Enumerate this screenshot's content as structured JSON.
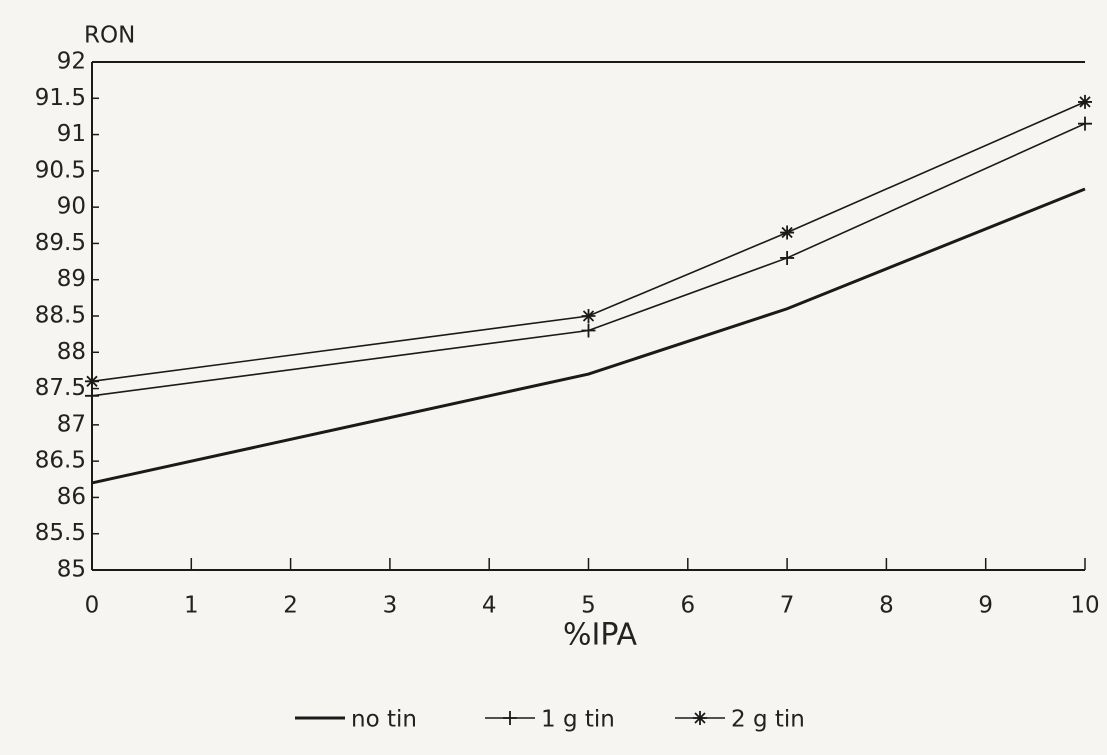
{
  "chart_data": {
    "type": "line",
    "y_label": "RON",
    "x_label": "%IPA",
    "x": [
      0,
      5,
      7,
      10
    ],
    "series": [
      {
        "name": "no tin",
        "color": "#1a1a1a",
        "marker": "none",
        "values": [
          86.2,
          87.7,
          88.6,
          90.25
        ]
      },
      {
        "name": "1 g tin",
        "color": "#1a1a1a",
        "marker": "plus",
        "values": [
          87.4,
          88.3,
          89.3,
          91.15
        ]
      },
      {
        "name": "2 g tin",
        "color": "#1a1a1a",
        "marker": "star",
        "values": [
          87.6,
          88.5,
          89.65,
          91.45
        ]
      }
    ],
    "xlim": [
      0,
      10
    ],
    "xticks": [
      0,
      1,
      2,
      3,
      4,
      5,
      6,
      7,
      8,
      9,
      10
    ],
    "ylim": [
      85,
      92
    ],
    "yticks": [
      85,
      85.5,
      86,
      86.5,
      87,
      87.5,
      88,
      88.5,
      89,
      89.5,
      90,
      90.5,
      91,
      91.5,
      92
    ],
    "legend": "bottom"
  }
}
